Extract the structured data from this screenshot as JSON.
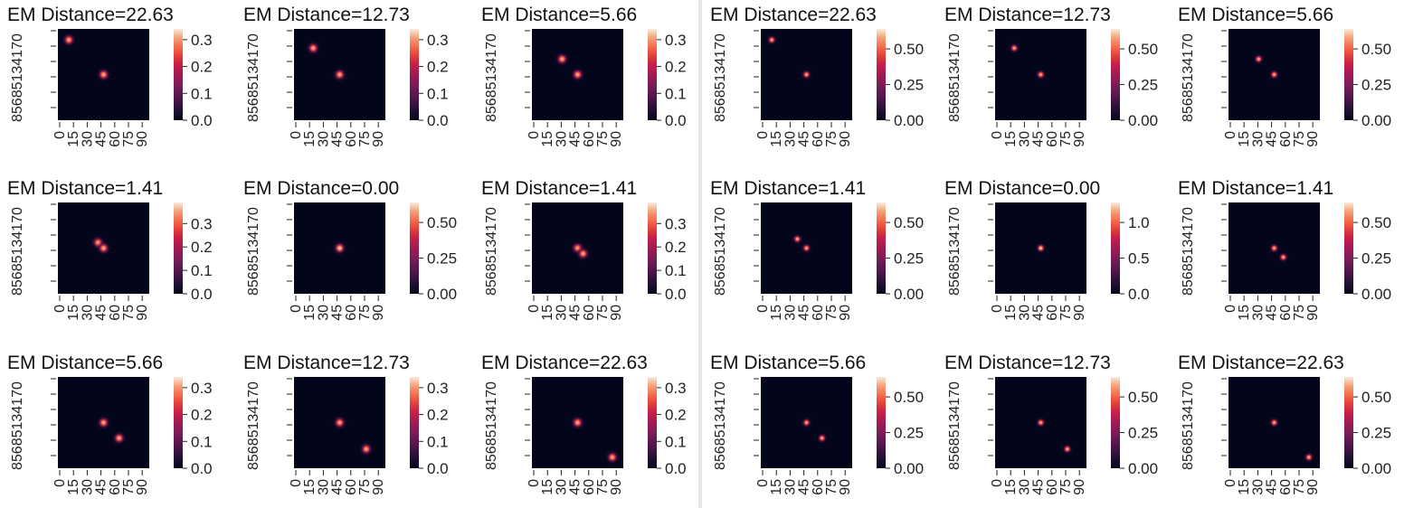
{
  "colormap": "rocket",
  "chart_data": [
    {
      "group": "left",
      "type": "heatmap",
      "title": "EM Distance=22.63",
      "sigma": 4,
      "blobs": [
        [
          12,
          12
        ],
        [
          50,
          50
        ]
      ],
      "colorbar_max": 0.3,
      "colorbar_ticks": [
        "0.0",
        "0.1",
        "0.2",
        "0.3"
      ],
      "ylabels": [
        "0",
        "17",
        "34",
        "51",
        "68",
        "85"
      ],
      "xlabels": [
        "0",
        "15",
        "30",
        "45",
        "60",
        "75",
        "90"
      ],
      "vmax": 0.34
    },
    {
      "group": "left",
      "type": "heatmap",
      "title": "EM Distance=12.73",
      "sigma": 4,
      "blobs": [
        [
          21,
          21
        ],
        [
          50,
          50
        ]
      ],
      "colorbar_max": 0.3,
      "colorbar_ticks": [
        "0.0",
        "0.1",
        "0.2",
        "0.3"
      ],
      "ylabels": [
        "0",
        "17",
        "34",
        "51",
        "68",
        "85"
      ],
      "xlabels": [
        "0",
        "15",
        "30",
        "45",
        "60",
        "75",
        "90"
      ],
      "vmax": 0.34
    },
    {
      "group": "left",
      "type": "heatmap",
      "title": "EM Distance=5.66",
      "sigma": 4,
      "blobs": [
        [
          33,
          33
        ],
        [
          50,
          50
        ]
      ],
      "colorbar_max": 0.3,
      "colorbar_ticks": [
        "0.0",
        "0.1",
        "0.2",
        "0.3"
      ],
      "ylabels": [
        "0",
        "17",
        "34",
        "51",
        "68",
        "85"
      ],
      "xlabels": [
        "0",
        "15",
        "30",
        "45",
        "60",
        "75",
        "90"
      ],
      "vmax": 0.34
    },
    {
      "group": "left",
      "type": "heatmap",
      "title": "EM Distance=1.41",
      "sigma": 4,
      "blobs": [
        [
          44,
          44
        ],
        [
          50,
          50
        ]
      ],
      "colorbar_max": 0.3,
      "colorbar_ticks": [
        "0.0",
        "0.1",
        "0.2",
        "0.3"
      ],
      "ylabels": [
        "0",
        "17",
        "34",
        "51",
        "68",
        "85"
      ],
      "xlabels": [
        "0",
        "15",
        "30",
        "45",
        "60",
        "75",
        "90"
      ],
      "vmax": 0.39
    },
    {
      "group": "left",
      "type": "heatmap",
      "title": "EM Distance=0.00",
      "sigma": 4,
      "blobs": [
        [
          50,
          50
        ]
      ],
      "colorbar_max": 0.5,
      "colorbar_ticks": [
        "0.00",
        "0.25",
        "0.50"
      ],
      "ylabels": [
        "0",
        "17",
        "34",
        "51",
        "68",
        "85"
      ],
      "xlabels": [
        "0",
        "15",
        "30",
        "45",
        "60",
        "75",
        "90"
      ],
      "vmax": 0.64
    },
    {
      "group": "left",
      "type": "heatmap",
      "title": "EM Distance=1.41",
      "sigma": 4,
      "blobs": [
        [
          50,
          50
        ],
        [
          56,
          56
        ]
      ],
      "colorbar_max": 0.3,
      "colorbar_ticks": [
        "0.0",
        "0.1",
        "0.2",
        "0.3"
      ],
      "ylabels": [
        "0",
        "17",
        "34",
        "51",
        "68",
        "85"
      ],
      "xlabels": [
        "0",
        "15",
        "30",
        "45",
        "60",
        "75",
        "90"
      ],
      "vmax": 0.39
    },
    {
      "group": "left",
      "type": "heatmap",
      "title": "EM Distance=5.66",
      "sigma": 4,
      "blobs": [
        [
          50,
          50
        ],
        [
          67,
          67
        ]
      ],
      "colorbar_max": 0.3,
      "colorbar_ticks": [
        "0.0",
        "0.1",
        "0.2",
        "0.3"
      ],
      "ylabels": [
        "0",
        "17",
        "34",
        "51",
        "68",
        "85"
      ],
      "xlabels": [
        "0",
        "15",
        "30",
        "45",
        "60",
        "75",
        "90"
      ],
      "vmax": 0.34
    },
    {
      "group": "left",
      "type": "heatmap",
      "title": "EM Distance=12.73",
      "sigma": 4,
      "blobs": [
        [
          50,
          50
        ],
        [
          79,
          79
        ]
      ],
      "colorbar_max": 0.3,
      "colorbar_ticks": [
        "0.0",
        "0.1",
        "0.2",
        "0.3"
      ],
      "ylabels": [
        "0",
        "17",
        "34",
        "51",
        "68",
        "85"
      ],
      "xlabels": [
        "0",
        "15",
        "30",
        "45",
        "60",
        "75",
        "90"
      ],
      "vmax": 0.34
    },
    {
      "group": "left",
      "type": "heatmap",
      "title": "EM Distance=22.63",
      "sigma": 4,
      "blobs": [
        [
          50,
          50
        ],
        [
          88,
          88
        ]
      ],
      "colorbar_max": 0.3,
      "colorbar_ticks": [
        "0.0",
        "0.1",
        "0.2",
        "0.3"
      ],
      "ylabels": [
        "0",
        "17",
        "34",
        "51",
        "68",
        "85"
      ],
      "xlabels": [
        "0",
        "15",
        "30",
        "45",
        "60",
        "75",
        "90"
      ],
      "vmax": 0.34
    },
    {
      "group": "right",
      "type": "heatmap",
      "title": "EM Distance=22.63",
      "sigma": 3,
      "blobs": [
        [
          12,
          12
        ],
        [
          50,
          50
        ]
      ],
      "colorbar_max": 0.5,
      "colorbar_ticks": [
        "0.00",
        "0.25",
        "0.50"
      ],
      "ylabels": [
        "0",
        "17",
        "34",
        "51",
        "68",
        "85"
      ],
      "xlabels": [
        "0",
        "15",
        "30",
        "45",
        "60",
        "75",
        "90"
      ],
      "vmax": 0.64
    },
    {
      "group": "right",
      "type": "heatmap",
      "title": "EM Distance=12.73",
      "sigma": 3,
      "blobs": [
        [
          21,
          21
        ],
        [
          50,
          50
        ]
      ],
      "colorbar_max": 0.5,
      "colorbar_ticks": [
        "0.00",
        "0.25",
        "0.50"
      ],
      "ylabels": [
        "0",
        "17",
        "34",
        "51",
        "68",
        "85"
      ],
      "xlabels": [
        "0",
        "15",
        "30",
        "45",
        "60",
        "75",
        "90"
      ],
      "vmax": 0.64
    },
    {
      "group": "right",
      "type": "heatmap",
      "title": "EM Distance=5.66",
      "sigma": 3,
      "blobs": [
        [
          33,
          33
        ],
        [
          50,
          50
        ]
      ],
      "colorbar_max": 0.5,
      "colorbar_ticks": [
        "0.00",
        "0.25",
        "0.50"
      ],
      "ylabels": [
        "0",
        "17",
        "34",
        "51",
        "68",
        "85"
      ],
      "xlabels": [
        "0",
        "15",
        "30",
        "45",
        "60",
        "75",
        "90"
      ],
      "vmax": 0.64
    },
    {
      "group": "right",
      "type": "heatmap",
      "title": "EM Distance=1.41",
      "sigma": 3,
      "blobs": [
        [
          40,
          40
        ],
        [
          50,
          50
        ]
      ],
      "colorbar_max": 0.5,
      "colorbar_ticks": [
        "0.00",
        "0.25",
        "0.50"
      ],
      "ylabels": [
        "0",
        "17",
        "34",
        "51",
        "68",
        "85"
      ],
      "xlabels": [
        "0",
        "15",
        "30",
        "45",
        "60",
        "75",
        "90"
      ],
      "vmax": 0.64
    },
    {
      "group": "right",
      "type": "heatmap",
      "title": "EM Distance=0.00",
      "sigma": 3,
      "blobs": [
        [
          50,
          50
        ]
      ],
      "colorbar_max": 1.0,
      "colorbar_ticks": [
        "0.0",
        "0.5",
        "1.0"
      ],
      "ylabels": [
        "0",
        "17",
        "34",
        "51",
        "68",
        "85"
      ],
      "xlabels": [
        "0",
        "15",
        "30",
        "45",
        "60",
        "75",
        "90"
      ],
      "vmax": 1.28
    },
    {
      "group": "right",
      "type": "heatmap",
      "title": "EM Distance=1.41",
      "sigma": 3,
      "blobs": [
        [
          50,
          50
        ],
        [
          60,
          60
        ]
      ],
      "colorbar_max": 0.5,
      "colorbar_ticks": [
        "0.00",
        "0.25",
        "0.50"
      ],
      "ylabels": [
        "0",
        "17",
        "34",
        "51",
        "68",
        "85"
      ],
      "xlabels": [
        "0",
        "15",
        "30",
        "45",
        "60",
        "75",
        "90"
      ],
      "vmax": 0.64
    },
    {
      "group": "right",
      "type": "heatmap",
      "title": "EM Distance=5.66",
      "sigma": 3,
      "blobs": [
        [
          50,
          50
        ],
        [
          67,
          67
        ]
      ],
      "colorbar_max": 0.5,
      "colorbar_ticks": [
        "0.00",
        "0.25",
        "0.50"
      ],
      "ylabels": [
        "0",
        "17",
        "34",
        "51",
        "68",
        "85"
      ],
      "xlabels": [
        "0",
        "15",
        "30",
        "45",
        "60",
        "75",
        "90"
      ],
      "vmax": 0.64
    },
    {
      "group": "right",
      "type": "heatmap",
      "title": "EM Distance=12.73",
      "sigma": 3,
      "blobs": [
        [
          50,
          50
        ],
        [
          79,
          79
        ]
      ],
      "colorbar_max": 0.5,
      "colorbar_ticks": [
        "0.00",
        "0.25",
        "0.50"
      ],
      "ylabels": [
        "0",
        "17",
        "34",
        "51",
        "68",
        "85"
      ],
      "xlabels": [
        "0",
        "15",
        "30",
        "45",
        "60",
        "75",
        "90"
      ],
      "vmax": 0.64
    },
    {
      "group": "right",
      "type": "heatmap",
      "title": "EM Distance=22.63",
      "sigma": 3,
      "blobs": [
        [
          50,
          50
        ],
        [
          88,
          88
        ]
      ],
      "colorbar_max": 0.5,
      "colorbar_ticks": [
        "0.00",
        "0.25",
        "0.50"
      ],
      "ylabels": [
        "0",
        "17",
        "34",
        "51",
        "68",
        "85"
      ],
      "xlabels": [
        "0",
        "15",
        "30",
        "45",
        "60",
        "75",
        "90"
      ],
      "vmax": 0.64
    }
  ]
}
